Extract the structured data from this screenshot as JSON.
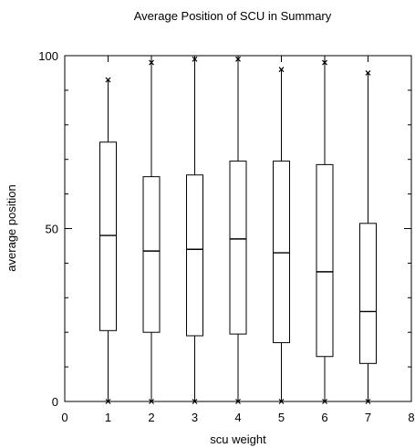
{
  "chart_data": {
    "type": "boxplot",
    "title": "Average Position of SCU in Summary",
    "xlabel": "scu weight",
    "ylabel": "average position",
    "xlim": [
      0,
      8
    ],
    "ylim": [
      0,
      100
    ],
    "x_ticks": [
      "0",
      "1",
      "2",
      "3",
      "4",
      "5",
      "6",
      "7",
      "8"
    ],
    "y_ticks": [
      "0",
      "50",
      "100"
    ],
    "grid": false,
    "boxes": [
      {
        "x": 1,
        "min": 0,
        "q1": 20.5,
        "median": 48,
        "q3": 75,
        "max": 93,
        "outliers": [
          0,
          93
        ]
      },
      {
        "x": 2,
        "min": 0,
        "q1": 20,
        "median": 43.5,
        "q3": 65,
        "max": 98,
        "outliers": [
          0,
          98
        ]
      },
      {
        "x": 3,
        "min": 0,
        "q1": 19,
        "median": 44,
        "q3": 65.5,
        "max": 99,
        "outliers": [
          0,
          99
        ]
      },
      {
        "x": 4,
        "min": 0,
        "q1": 19.5,
        "median": 47,
        "q3": 69.5,
        "max": 99,
        "outliers": [
          0,
          99
        ]
      },
      {
        "x": 5,
        "min": 0,
        "q1": 17,
        "median": 43,
        "q3": 69.5,
        "max": 96,
        "outliers": [
          0,
          96
        ]
      },
      {
        "x": 6,
        "min": 0,
        "q1": 13,
        "median": 37.5,
        "q3": 68.5,
        "max": 98,
        "outliers": [
          0,
          98
        ]
      },
      {
        "x": 7,
        "min": 0,
        "q1": 11,
        "median": 26,
        "q3": 51.5,
        "max": 95,
        "outliers": [
          0,
          95
        ]
      }
    ]
  }
}
